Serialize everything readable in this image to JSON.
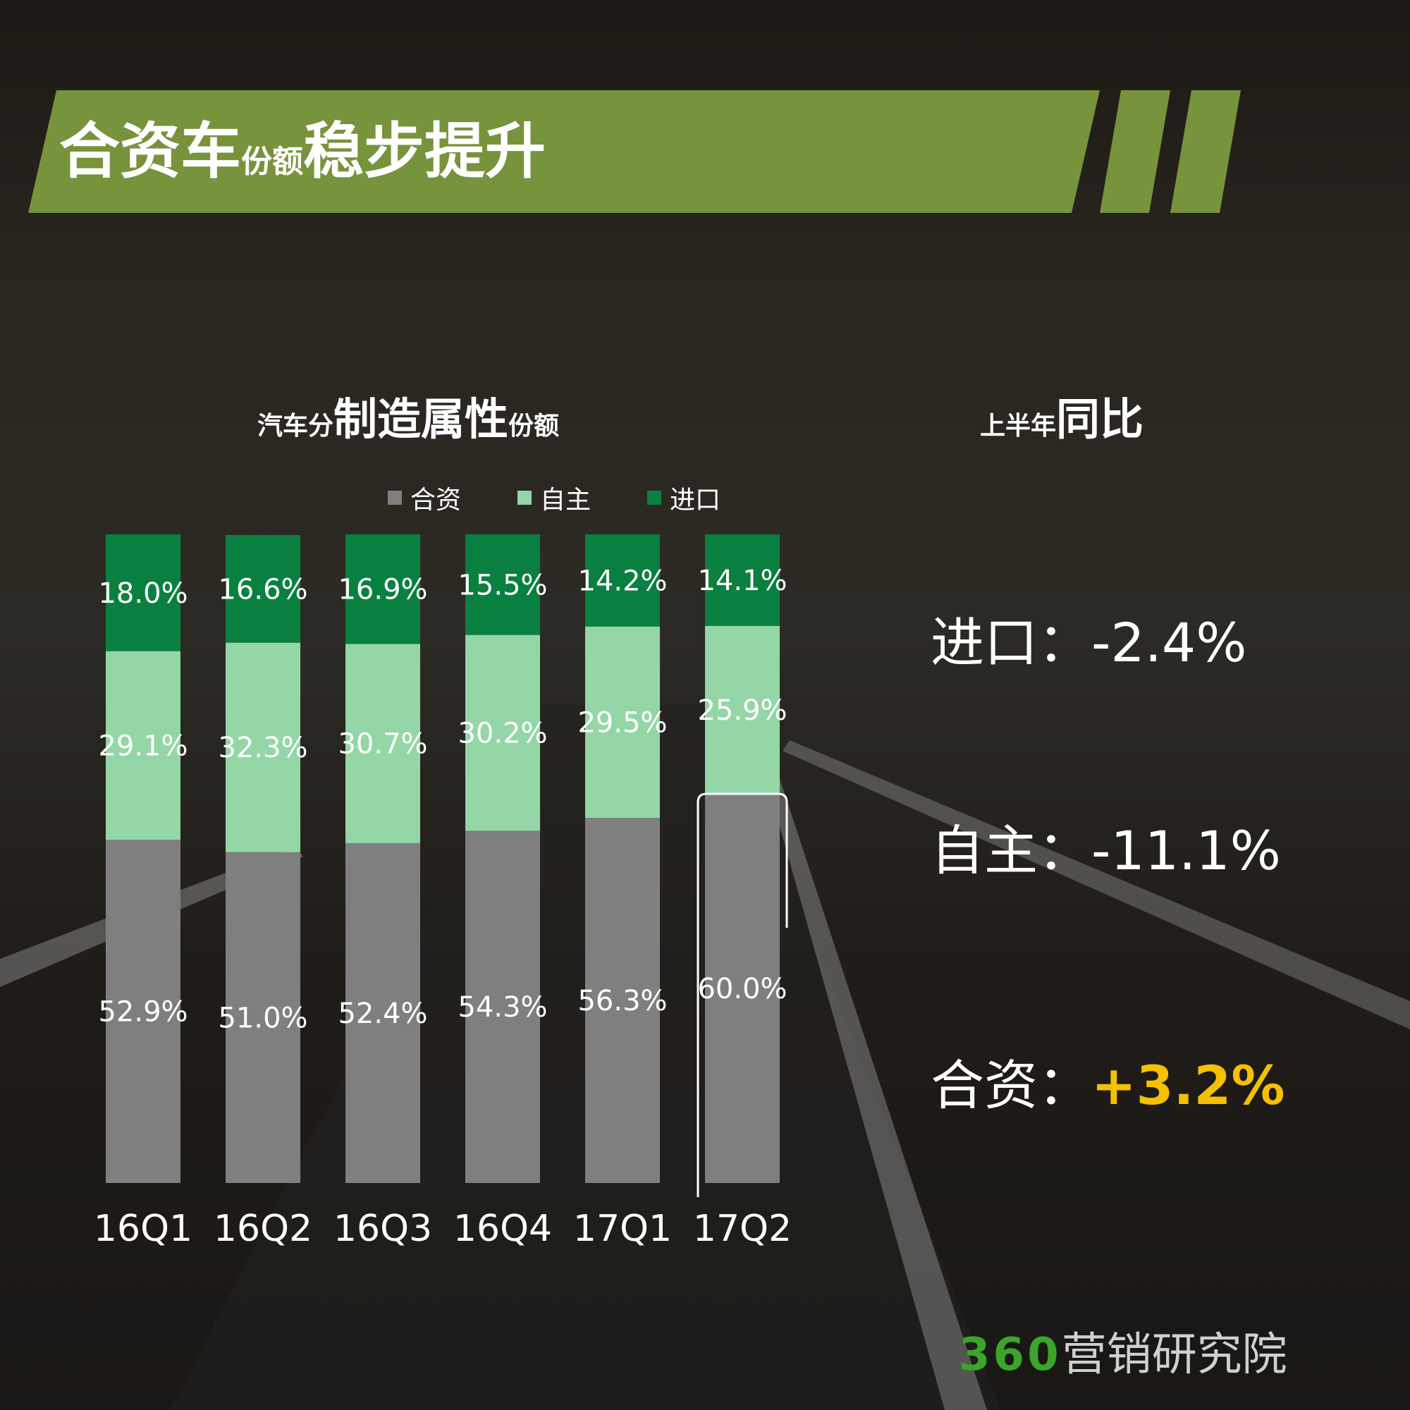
{
  "header": {
    "title_part1": "合资车",
    "title_part2": "份额",
    "title_part3": "稳步提升"
  },
  "chart_section": {
    "title_part1": "汽车分",
    "title_part2": "制造属性",
    "title_part3": "份额"
  },
  "yoy": {
    "title_part1": "上半年",
    "title_part2": "同比",
    "rows": [
      {
        "label": "进口",
        "sep": "：",
        "value": "-2.4%"
      },
      {
        "label": "自主",
        "sep": "：",
        "value": "-11.1%"
      },
      {
        "label": "合资",
        "sep": "：",
        "value": "+3.2%"
      }
    ],
    "highlight_color": "#f5c000"
  },
  "chart_data": {
    "type": "bar",
    "stacked": true,
    "categories": [
      "16Q1",
      "16Q2",
      "16Q3",
      "16Q4",
      "17Q1",
      "17Q2"
    ],
    "series": [
      {
        "name": "合资",
        "color": "#7f7f7f",
        "values": [
          52.9,
          51.0,
          52.4,
          54.3,
          56.3,
          60.0
        ],
        "labels": [
          "52.9%",
          "51.0%",
          "52.4%",
          "54.3%",
          "56.3%",
          "60.0%"
        ]
      },
      {
        "name": "自主",
        "color": "#94d6a6",
        "values": [
          29.1,
          32.3,
          30.7,
          30.2,
          29.5,
          25.9
        ],
        "labels": [
          "29.1%",
          "32.3%",
          "30.7%",
          "30.2%",
          "29.5%",
          "25.9%"
        ]
      },
      {
        "name": "进口",
        "color": "#0a8040",
        "values": [
          18.0,
          16.6,
          16.9,
          15.5,
          14.2,
          14.1
        ],
        "labels": [
          "18.0%",
          "16.6%",
          "16.9%",
          "15.5%",
          "14.2%",
          "14.1%"
        ]
      }
    ],
    "ylim": [
      0,
      100
    ],
    "legend_position": "top-center",
    "highlight_category": "17Q2",
    "highlight_series": "合资"
  },
  "brand": {
    "number": "360",
    "text": "营销研究院"
  }
}
